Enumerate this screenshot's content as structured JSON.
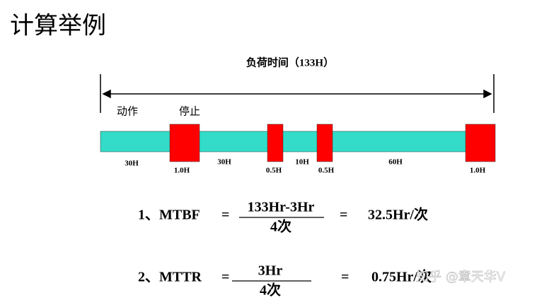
{
  "title": "计算举例",
  "timeline": {
    "header": "负荷时间（133H）",
    "states": [
      "动作",
      "停止"
    ],
    "segments": [
      "30H",
      "1.0H",
      "30H",
      "0.5H",
      "10H",
      "0.5H",
      "60H",
      "1.0H"
    ]
  },
  "formulas": [
    {
      "label": "1、MTBF",
      "eq1": "=",
      "numerator": "133Hr-3Hr",
      "denominator": "4次",
      "eq2": "=",
      "result": "32.5Hr/次"
    },
    {
      "label": "2、MTTR",
      "eq1": "=",
      "numerator": "3Hr",
      "denominator": "4次",
      "eq2": "=",
      "result": "0.75Hr/次"
    }
  ],
  "watermark": "知乎 @章天华V"
}
